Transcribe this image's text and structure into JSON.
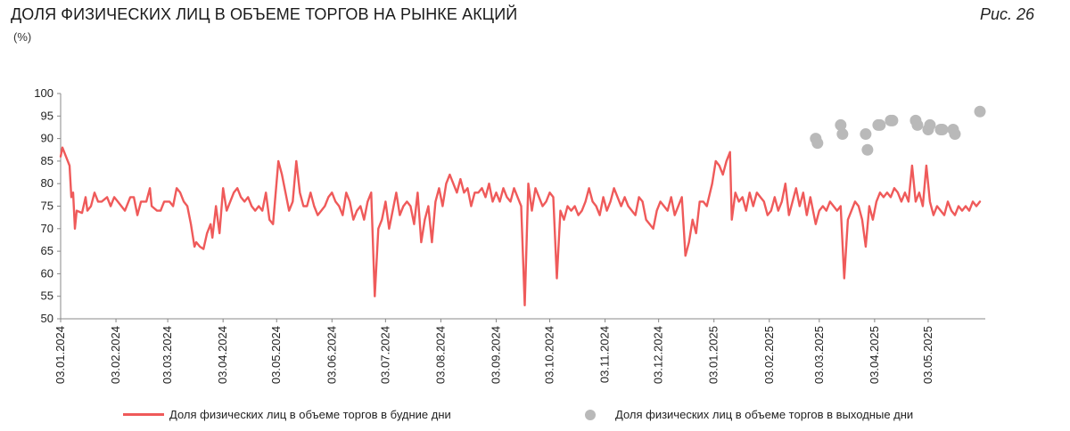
{
  "header": {
    "title": "ДОЛЯ ФИЗИЧЕСКИХ ЛИЦ В ОБЪЕМЕ ТОРГОВ НА РЫНКЕ АКЦИЙ",
    "unit": "(%)",
    "figure_label": "Рис. 26"
  },
  "legend": {
    "weekday": "Доля физических лиц в объеме торгов в будние дни",
    "weekend": "Доля физических лиц в объеме торгов в выходные дни"
  },
  "colors": {
    "weekday": "#ef5a5a",
    "weekend": "#b9b9b9",
    "axis": "#888888"
  },
  "chart_data": {
    "type": "line",
    "ylim": [
      50,
      100
    ],
    "y_ticks": [
      50,
      55,
      60,
      65,
      70,
      75,
      80,
      85,
      90,
      95,
      100
    ],
    "x_range": [
      "2024-01-03",
      "2025-06-04"
    ],
    "x_ticks": [
      "03.01.2024",
      "03.02.2024",
      "03.03.2024",
      "03.04.2024",
      "03.05.2024",
      "03.06.2024",
      "03.07.2024",
      "03.08.2024",
      "03.09.2024",
      "03.10.2024",
      "03.11.2024",
      "03.12.2024",
      "03.01.2025",
      "03.02.2025",
      "03.03.2025",
      "03.04.2025",
      "03.05.2025"
    ],
    "grid": false,
    "legend_position": "bottom",
    "series": [
      {
        "name": "Доля физических лиц в объеме торгов в будние дни",
        "kind": "line",
        "points": [
          [
            "2024-01-03",
            86
          ],
          [
            "2024-01-04",
            88
          ],
          [
            "2024-01-06",
            86
          ],
          [
            "2024-01-08",
            84
          ],
          [
            "2024-01-09",
            77
          ],
          [
            "2024-01-10",
            78
          ],
          [
            "2024-01-11",
            70
          ],
          [
            "2024-01-12",
            74
          ],
          [
            "2024-01-15",
            73.5
          ],
          [
            "2024-01-17",
            77
          ],
          [
            "2024-01-18",
            74
          ],
          [
            "2024-01-20",
            75
          ],
          [
            "2024-01-22",
            78
          ],
          [
            "2024-01-24",
            76
          ],
          [
            "2024-01-26",
            76
          ],
          [
            "2024-01-29",
            77
          ],
          [
            "2024-01-31",
            75
          ],
          [
            "2024-02-02",
            77
          ],
          [
            "2024-02-04",
            76
          ],
          [
            "2024-02-06",
            75
          ],
          [
            "2024-02-08",
            74
          ],
          [
            "2024-02-11",
            77
          ],
          [
            "2024-02-13",
            77
          ],
          [
            "2024-02-15",
            73
          ],
          [
            "2024-02-17",
            76
          ],
          [
            "2024-02-20",
            76
          ],
          [
            "2024-02-22",
            79
          ],
          [
            "2024-02-23",
            75
          ],
          [
            "2024-02-26",
            74
          ],
          [
            "2024-02-28",
            74
          ],
          [
            "2024-03-01",
            76
          ],
          [
            "2024-03-04",
            76
          ],
          [
            "2024-03-06",
            75
          ],
          [
            "2024-03-08",
            79
          ],
          [
            "2024-03-10",
            78
          ],
          [
            "2024-03-12",
            76
          ],
          [
            "2024-03-14",
            75
          ],
          [
            "2024-03-16",
            71
          ],
          [
            "2024-03-18",
            66
          ],
          [
            "2024-03-19",
            67
          ],
          [
            "2024-03-21",
            66
          ],
          [
            "2024-03-23",
            65.5
          ],
          [
            "2024-03-25",
            69
          ],
          [
            "2024-03-27",
            71
          ],
          [
            "2024-03-28",
            68
          ],
          [
            "2024-03-30",
            75
          ],
          [
            "2024-04-01",
            69
          ],
          [
            "2024-04-03",
            79
          ],
          [
            "2024-04-05",
            74
          ],
          [
            "2024-04-07",
            76
          ],
          [
            "2024-04-09",
            78
          ],
          [
            "2024-04-11",
            79
          ],
          [
            "2024-04-13",
            77
          ],
          [
            "2024-04-15",
            76
          ],
          [
            "2024-04-17",
            77
          ],
          [
            "2024-04-19",
            75
          ],
          [
            "2024-04-21",
            74
          ],
          [
            "2024-04-23",
            75
          ],
          [
            "2024-04-25",
            74
          ],
          [
            "2024-04-27",
            78
          ],
          [
            "2024-04-29",
            72
          ],
          [
            "2024-05-01",
            71
          ],
          [
            "2024-05-04",
            85
          ],
          [
            "2024-05-06",
            82
          ],
          [
            "2024-05-08",
            78
          ],
          [
            "2024-05-10",
            74
          ],
          [
            "2024-05-12",
            76
          ],
          [
            "2024-05-14",
            85
          ],
          [
            "2024-05-16",
            78
          ],
          [
            "2024-05-18",
            75
          ],
          [
            "2024-05-20",
            75
          ],
          [
            "2024-05-22",
            78
          ],
          [
            "2024-05-24",
            75
          ],
          [
            "2024-05-26",
            73
          ],
          [
            "2024-05-28",
            74
          ],
          [
            "2024-05-30",
            75
          ],
          [
            "2024-06-01",
            77
          ],
          [
            "2024-06-03",
            78
          ],
          [
            "2024-06-05",
            76
          ],
          [
            "2024-06-07",
            75
          ],
          [
            "2024-06-09",
            73
          ],
          [
            "2024-06-11",
            78
          ],
          [
            "2024-06-13",
            76
          ],
          [
            "2024-06-15",
            72
          ],
          [
            "2024-06-17",
            74
          ],
          [
            "2024-06-19",
            75
          ],
          [
            "2024-06-21",
            72
          ],
          [
            "2024-06-23",
            76
          ],
          [
            "2024-06-25",
            78
          ],
          [
            "2024-06-27",
            55
          ],
          [
            "2024-06-29",
            70
          ],
          [
            "2024-07-01",
            72
          ],
          [
            "2024-07-03",
            76
          ],
          [
            "2024-07-05",
            70
          ],
          [
            "2024-07-07",
            74
          ],
          [
            "2024-07-09",
            78
          ],
          [
            "2024-07-11",
            73
          ],
          [
            "2024-07-13",
            75
          ],
          [
            "2024-07-15",
            76
          ],
          [
            "2024-07-17",
            75
          ],
          [
            "2024-07-19",
            71
          ],
          [
            "2024-07-21",
            78
          ],
          [
            "2024-07-23",
            67
          ],
          [
            "2024-07-25",
            72
          ],
          [
            "2024-07-27",
            75
          ],
          [
            "2024-07-29",
            67
          ],
          [
            "2024-07-31",
            76
          ],
          [
            "2024-08-02",
            79
          ],
          [
            "2024-08-04",
            75
          ],
          [
            "2024-08-06",
            80
          ],
          [
            "2024-08-08",
            82
          ],
          [
            "2024-08-10",
            80
          ],
          [
            "2024-08-12",
            78
          ],
          [
            "2024-08-14",
            81
          ],
          [
            "2024-08-16",
            78
          ],
          [
            "2024-08-18",
            79
          ],
          [
            "2024-08-20",
            75
          ],
          [
            "2024-08-22",
            78
          ],
          [
            "2024-08-24",
            78
          ],
          [
            "2024-08-26",
            79
          ],
          [
            "2024-08-28",
            77
          ],
          [
            "2024-08-30",
            80
          ],
          [
            "2024-09-01",
            76
          ],
          [
            "2024-09-03",
            78
          ],
          [
            "2024-09-05",
            76
          ],
          [
            "2024-09-07",
            79
          ],
          [
            "2024-09-09",
            77
          ],
          [
            "2024-09-11",
            76
          ],
          [
            "2024-09-13",
            79
          ],
          [
            "2024-09-15",
            77
          ],
          [
            "2024-09-17",
            75
          ],
          [
            "2024-09-19",
            53
          ],
          [
            "2024-09-21",
            80
          ],
          [
            "2024-09-23",
            74
          ],
          [
            "2024-09-25",
            79
          ],
          [
            "2024-09-27",
            77
          ],
          [
            "2024-09-29",
            75
          ],
          [
            "2024-10-01",
            76
          ],
          [
            "2024-10-03",
            78
          ],
          [
            "2024-10-05",
            77
          ],
          [
            "2024-10-07",
            59
          ],
          [
            "2024-10-09",
            74
          ],
          [
            "2024-10-11",
            72
          ],
          [
            "2024-10-13",
            75
          ],
          [
            "2024-10-15",
            74
          ],
          [
            "2024-10-17",
            75
          ],
          [
            "2024-10-19",
            73
          ],
          [
            "2024-10-21",
            74
          ],
          [
            "2024-10-23",
            76
          ],
          [
            "2024-10-25",
            79
          ],
          [
            "2024-10-27",
            76
          ],
          [
            "2024-10-29",
            75
          ],
          [
            "2024-10-31",
            73
          ],
          [
            "2024-11-02",
            77
          ],
          [
            "2024-11-04",
            74
          ],
          [
            "2024-11-06",
            76
          ],
          [
            "2024-11-08",
            79
          ],
          [
            "2024-11-10",
            77
          ],
          [
            "2024-11-12",
            75
          ],
          [
            "2024-11-14",
            77
          ],
          [
            "2024-11-16",
            75
          ],
          [
            "2024-11-18",
            74
          ],
          [
            "2024-11-20",
            73
          ],
          [
            "2024-11-22",
            77
          ],
          [
            "2024-11-24",
            76
          ],
          [
            "2024-11-26",
            72
          ],
          [
            "2024-11-28",
            71
          ],
          [
            "2024-11-30",
            70
          ],
          [
            "2024-12-02",
            74
          ],
          [
            "2024-12-04",
            76
          ],
          [
            "2024-12-06",
            75
          ],
          [
            "2024-12-08",
            74
          ],
          [
            "2024-12-10",
            77
          ],
          [
            "2024-12-12",
            73
          ],
          [
            "2024-12-14",
            75
          ],
          [
            "2024-12-16",
            77
          ],
          [
            "2024-12-18",
            64
          ],
          [
            "2024-12-20",
            67
          ],
          [
            "2024-12-22",
            72
          ],
          [
            "2024-12-24",
            69
          ],
          [
            "2024-12-26",
            76
          ],
          [
            "2024-12-28",
            76
          ],
          [
            "2024-12-30",
            75
          ],
          [
            "2025-01-02",
            80
          ],
          [
            "2025-01-04",
            85
          ],
          [
            "2025-01-06",
            84
          ],
          [
            "2025-01-08",
            82
          ],
          [
            "2025-01-10",
            85
          ],
          [
            "2025-01-12",
            87
          ],
          [
            "2025-01-13",
            72
          ],
          [
            "2025-01-15",
            78
          ],
          [
            "2025-01-17",
            76
          ],
          [
            "2025-01-19",
            77
          ],
          [
            "2025-01-21",
            74
          ],
          [
            "2025-01-23",
            78
          ],
          [
            "2025-01-25",
            75
          ],
          [
            "2025-01-27",
            78
          ],
          [
            "2025-01-29",
            77
          ],
          [
            "2025-01-31",
            76
          ],
          [
            "2025-02-02",
            73
          ],
          [
            "2025-02-04",
            74
          ],
          [
            "2025-02-06",
            77
          ],
          [
            "2025-02-08",
            74
          ],
          [
            "2025-02-10",
            76
          ],
          [
            "2025-02-12",
            80
          ],
          [
            "2025-02-14",
            73
          ],
          [
            "2025-02-16",
            76
          ],
          [
            "2025-02-18",
            79
          ],
          [
            "2025-02-20",
            75
          ],
          [
            "2025-02-22",
            78
          ],
          [
            "2025-02-24",
            73
          ],
          [
            "2025-02-26",
            77
          ],
          [
            "2025-03-01",
            71
          ],
          [
            "2025-03-03",
            74
          ],
          [
            "2025-03-05",
            75
          ],
          [
            "2025-03-07",
            74
          ],
          [
            "2025-03-09",
            76
          ],
          [
            "2025-03-11",
            75
          ],
          [
            "2025-03-13",
            74
          ],
          [
            "2025-03-15",
            75
          ],
          [
            "2025-03-17",
            59
          ],
          [
            "2025-03-19",
            72
          ],
          [
            "2025-03-21",
            74
          ],
          [
            "2025-03-23",
            76
          ],
          [
            "2025-03-25",
            75
          ],
          [
            "2025-03-27",
            72
          ],
          [
            "2025-03-29",
            66
          ],
          [
            "2025-03-31",
            75
          ],
          [
            "2025-04-02",
            72
          ],
          [
            "2025-04-04",
            76
          ],
          [
            "2025-04-06",
            78
          ],
          [
            "2025-04-08",
            77
          ],
          [
            "2025-04-10",
            78
          ],
          [
            "2025-04-12",
            77
          ],
          [
            "2025-04-14",
            79
          ],
          [
            "2025-04-16",
            78
          ],
          [
            "2025-04-18",
            76
          ],
          [
            "2025-04-20",
            78
          ],
          [
            "2025-04-22",
            76
          ],
          [
            "2025-04-24",
            84
          ],
          [
            "2025-04-26",
            76
          ],
          [
            "2025-04-28",
            78
          ],
          [
            "2025-04-30",
            75
          ],
          [
            "2025-05-02",
            84
          ],
          [
            "2025-05-04",
            76
          ],
          [
            "2025-05-06",
            73
          ],
          [
            "2025-05-08",
            75
          ],
          [
            "2025-05-10",
            74
          ],
          [
            "2025-05-12",
            73
          ],
          [
            "2025-05-14",
            76
          ],
          [
            "2025-05-16",
            74
          ],
          [
            "2025-05-18",
            73
          ],
          [
            "2025-05-20",
            75
          ],
          [
            "2025-05-22",
            74
          ],
          [
            "2025-05-24",
            75
          ],
          [
            "2025-05-26",
            74
          ],
          [
            "2025-05-28",
            76
          ],
          [
            "2025-05-30",
            75
          ],
          [
            "2025-06-01",
            76
          ]
        ]
      },
      {
        "name": "Доля физических лиц в объеме торгов в выходные дни",
        "kind": "scatter",
        "points": [
          [
            "2025-03-01",
            90
          ],
          [
            "2025-03-02",
            89
          ],
          [
            "2025-03-15",
            93
          ],
          [
            "2025-03-16",
            91
          ],
          [
            "2025-03-29",
            91
          ],
          [
            "2025-03-30",
            87.5
          ],
          [
            "2025-04-05",
            93
          ],
          [
            "2025-04-06",
            93
          ],
          [
            "2025-04-12",
            94
          ],
          [
            "2025-04-13",
            94
          ],
          [
            "2025-04-26",
            94
          ],
          [
            "2025-04-27",
            93
          ],
          [
            "2025-05-03",
            92
          ],
          [
            "2025-05-04",
            93
          ],
          [
            "2025-05-10",
            92
          ],
          [
            "2025-05-11",
            92
          ],
          [
            "2025-05-17",
            92
          ],
          [
            "2025-05-18",
            91
          ],
          [
            "2025-06-01",
            96
          ]
        ]
      }
    ]
  }
}
